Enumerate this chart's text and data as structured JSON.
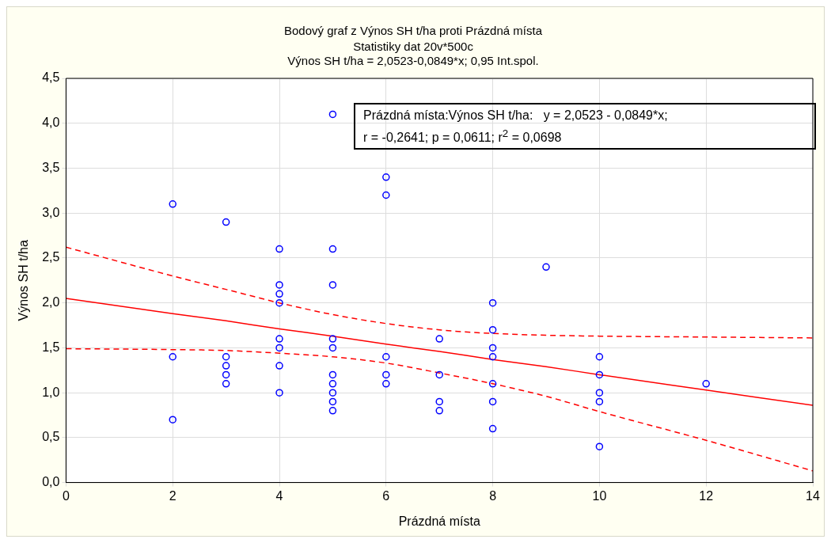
{
  "chart_data": {
    "type": "scatter",
    "title": "Bodový graf z Výnos SH t/ha proti Prázdná místa",
    "subtitle": "Statistiky dat 20v*500c",
    "xlabel": "Prázdná místa",
    "ylabel": "Výnos SH t/ha",
    "annotations": [
      "Výnos SH t/ha = 2,0523-0,0849*x; 0,95 Int.spol.",
      "Prázdná místa:Výnos SH t/ha:   y = 2,0523 - 0,0849*x;",
      "r = -0,2641; p = 0,0611; r$^{2}$ = 0,0698"
    ],
    "series": [
      {
        "color": "#0000ff",
        "marker": "circle",
        "x": [
          2,
          2,
          2,
          3,
          3,
          3,
          3,
          3,
          4,
          4,
          4,
          4,
          4,
          4,
          4,
          4,
          5,
          5,
          5,
          5,
          5,
          5,
          5,
          5,
          5,
          5,
          6,
          6,
          6,
          6,
          6,
          7,
          7,
          7,
          7,
          8,
          8,
          8,
          8,
          8,
          8,
          8,
          9,
          10,
          10,
          10,
          10,
          10,
          12
        ],
        "values": [
          3.1,
          1.4,
          0.7,
          2.9,
          1.4,
          1.3,
          1.2,
          1.1,
          2.6,
          2.2,
          2.1,
          2.0,
          1.6,
          1.5,
          1.3,
          1.0,
          4.1,
          2.6,
          2.2,
          1.6,
          1.5,
          1.2,
          1.1,
          1.0,
          0.9,
          0.8,
          3.4,
          3.2,
          1.4,
          1.2,
          1.1,
          1.6,
          1.2,
          0.9,
          0.8,
          2.0,
          1.7,
          1.5,
          1.4,
          1.1,
          0.9,
          0.6,
          2.4,
          1.4,
          1.2,
          1.0,
          0.9,
          0.4,
          1.1
        ]
      },
      {
        "type": "line",
        "color": "#ff0000",
        "marker": "none",
        "line_style": "solid",
        "x": [
          0,
          2,
          3,
          4,
          5,
          6,
          7,
          8,
          9,
          10,
          12,
          14
        ],
        "values": [
          2.05,
          1.88,
          1.8,
          1.71,
          1.63,
          1.54,
          1.46,
          1.37,
          1.29,
          1.2,
          1.03,
          0.86
        ]
      },
      {
        "type": "line",
        "color": "#ff0000",
        "marker": "none",
        "line_style": "dashed",
        "x": [
          0,
          2,
          3,
          4,
          5,
          6,
          7,
          8,
          9,
          10,
          12,
          14
        ],
        "values": [
          1.49,
          1.48,
          1.47,
          1.44,
          1.4,
          1.33,
          1.22,
          1.1,
          0.96,
          0.79,
          0.47,
          0.13
        ]
      },
      {
        "type": "line",
        "color": "#ff0000",
        "marker": "none",
        "line_style": "dashed",
        "x": [
          0,
          2,
          3,
          4,
          5,
          6,
          7,
          8,
          9,
          10,
          12,
          14
        ],
        "values": [
          2.62,
          2.3,
          2.15,
          2.0,
          1.87,
          1.77,
          1.7,
          1.66,
          1.64,
          1.63,
          1.62,
          1.61
        ]
      }
    ],
    "xlim": [
      0,
      14
    ],
    "xticks": [
      0,
      2,
      4,
      6,
      8,
      10,
      12,
      14
    ],
    "ylim": [
      0,
      4.5
    ],
    "yticks": [
      {
        "value": 0,
        "label": "0,0"
      },
      {
        "value": 0.5,
        "label": "0,5"
      },
      {
        "value": 1,
        "label": "1,0"
      },
      {
        "value": 1.5,
        "label": "1,5"
      },
      {
        "value": 2,
        "label": "2,0"
      },
      {
        "value": 2.5,
        "label": "2,5"
      },
      {
        "value": 3,
        "label": "3,0"
      },
      {
        "value": 3.5,
        "label": "3,5"
      },
      {
        "value": 4,
        "label": "4,0"
      },
      {
        "value": 4.5,
        "label": "4,5"
      }
    ],
    "grid": true,
    "legend": false
  }
}
